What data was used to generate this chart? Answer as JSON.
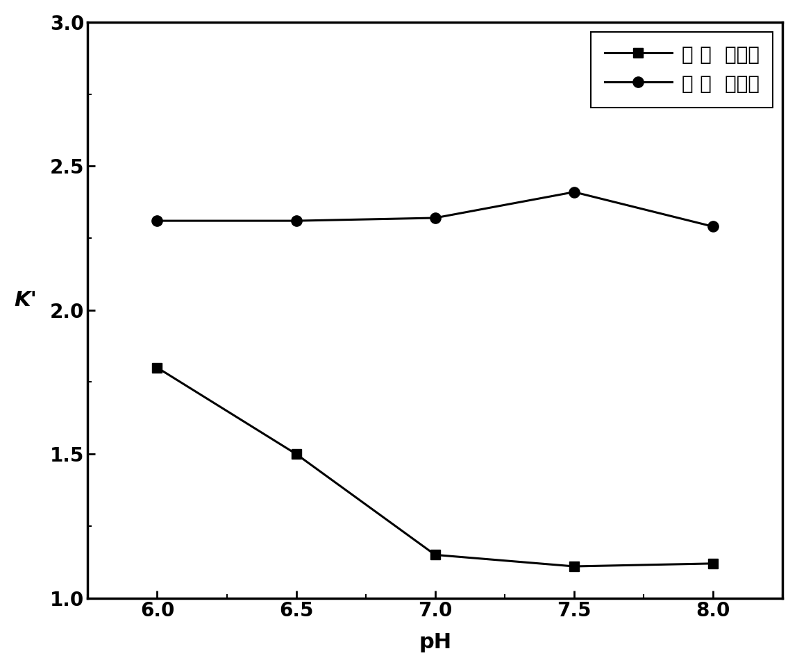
{
  "x": [
    6.0,
    6.5,
    7.0,
    7.5,
    8.0
  ],
  "y_square": [
    1.8,
    1.5,
    1.15,
    1.11,
    1.12
  ],
  "y_circle": [
    2.31,
    2.31,
    2.32,
    2.41,
    2.29
  ],
  "xlabel": "pH",
  "ylabel": "K'",
  "xlim": [
    5.75,
    8.25
  ],
  "ylim": [
    1.0,
    3.0
  ],
  "xticks": [
    6.0,
    6.5,
    7.0,
    7.5,
    8.0
  ],
  "yticks": [
    1.0,
    1.5,
    2.0,
    2.5,
    3.0
  ],
  "legend_square": "对 亚  硒基酚",
  "legend_circle": "对 苯  里二肿",
  "line_color": "#000000",
  "bg_color": "#ffffff",
  "label_fontsize": 22,
  "tick_fontsize": 20,
  "legend_fontsize": 20
}
